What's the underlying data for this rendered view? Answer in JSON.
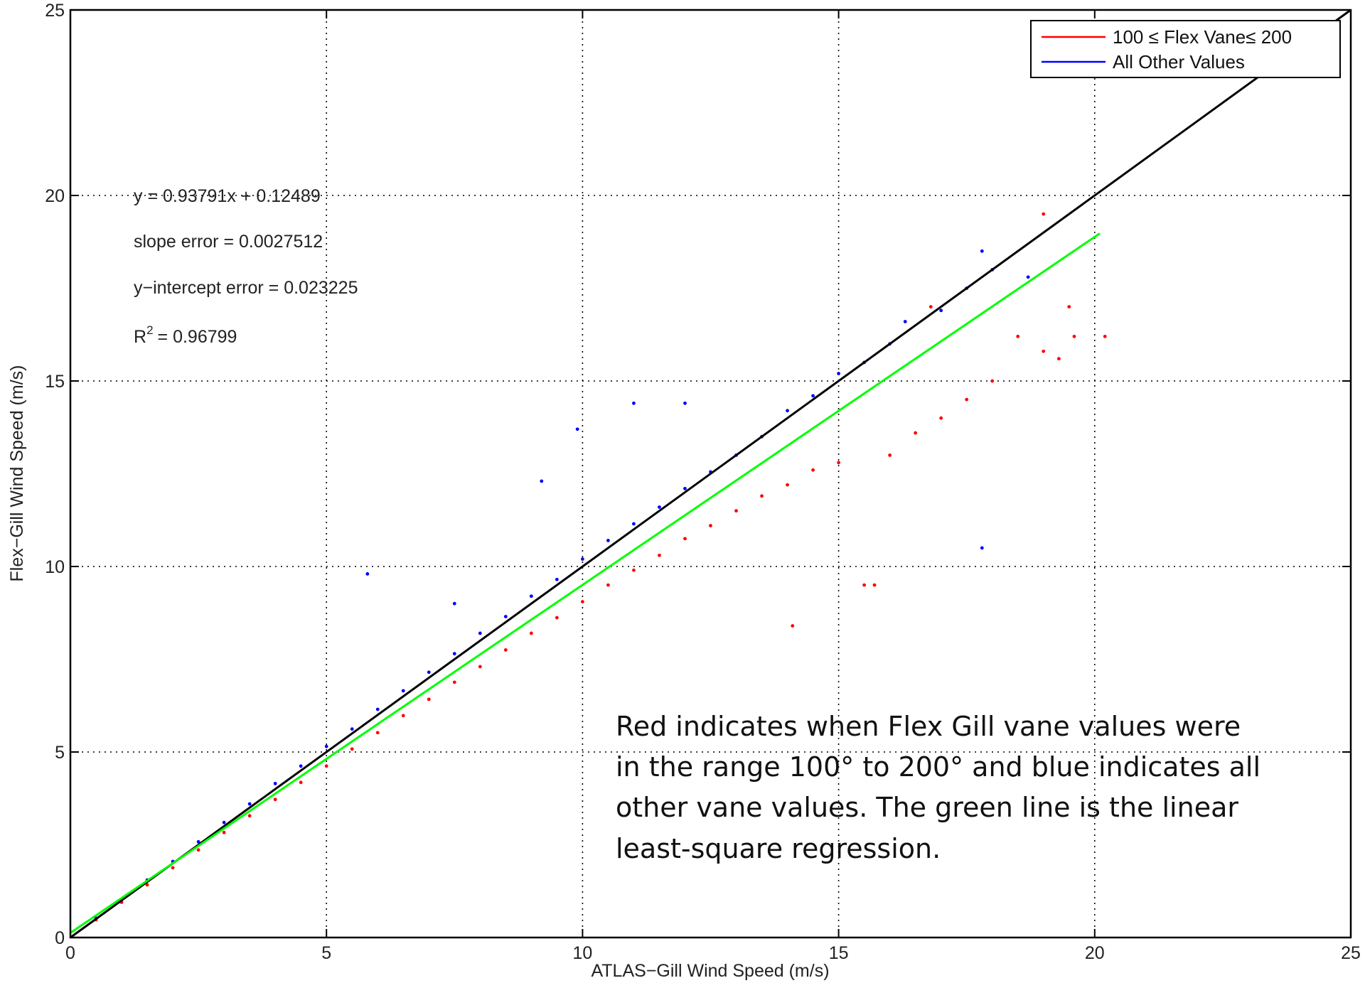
{
  "chart_data": {
    "type": "scatter",
    "xlabel": "ATLAS−Gill Wind Speed (m/s)",
    "ylabel": "Flex−Gill Wind Speed (m/s)",
    "xlim": [
      0,
      25
    ],
    "ylim": [
      0,
      25
    ],
    "xticks": [
      "0",
      "5",
      "10",
      "15",
      "20",
      "25"
    ],
    "yticks": [
      "0",
      "5",
      "10",
      "15",
      "20",
      "25"
    ],
    "grid": true,
    "legend_position": "top-right",
    "series": [
      {
        "name": "100 ≤ Flex Vane≤ 200",
        "color": "#ff0000",
        "points": [
          [
            0.5,
            0.48
          ],
          [
            1.0,
            0.95
          ],
          [
            1.5,
            1.42
          ],
          [
            2.0,
            1.88
          ],
          [
            2.5,
            2.36
          ],
          [
            3.0,
            2.83
          ],
          [
            3.5,
            3.28
          ],
          [
            4.0,
            3.72
          ],
          [
            4.5,
            4.18
          ],
          [
            5.0,
            4.62
          ],
          [
            5.5,
            5.08
          ],
          [
            6.0,
            5.52
          ],
          [
            6.5,
            5.98
          ],
          [
            7.0,
            6.42
          ],
          [
            7.5,
            6.88
          ],
          [
            8.0,
            7.3
          ],
          [
            8.5,
            7.75
          ],
          [
            9.0,
            8.2
          ],
          [
            9.5,
            8.62
          ],
          [
            10.0,
            9.05
          ],
          [
            10.5,
            9.5
          ],
          [
            11.0,
            9.9
          ],
          [
            11.5,
            10.3
          ],
          [
            12.0,
            10.75
          ],
          [
            12.5,
            11.1
          ],
          [
            13.0,
            11.5
          ],
          [
            13.5,
            11.9
          ],
          [
            14.0,
            12.2
          ],
          [
            14.5,
            12.6
          ],
          [
            15.0,
            12.8
          ],
          [
            15.5,
            9.5
          ],
          [
            15.7,
            9.5
          ],
          [
            14.1,
            8.4
          ],
          [
            16.0,
            13.0
          ],
          [
            16.5,
            13.6
          ],
          [
            17.0,
            14.0
          ],
          [
            17.5,
            14.5
          ],
          [
            18.0,
            15.0
          ],
          [
            18.5,
            16.2
          ],
          [
            19.0,
            15.8
          ],
          [
            19.3,
            15.6
          ],
          [
            19.6,
            16.2
          ],
          [
            20.2,
            16.2
          ],
          [
            19.5,
            17.0
          ],
          [
            19.0,
            19.5
          ],
          [
            16.8,
            17.0
          ]
        ]
      },
      {
        "name": "All Other Values",
        "color": "#0000ff",
        "points": [
          [
            0.5,
            0.52
          ],
          [
            1.0,
            1.02
          ],
          [
            1.5,
            1.55
          ],
          [
            2.0,
            2.05
          ],
          [
            2.5,
            2.58
          ],
          [
            3.0,
            3.1
          ],
          [
            3.5,
            3.6
          ],
          [
            4.0,
            4.15
          ],
          [
            4.5,
            4.62
          ],
          [
            5.0,
            5.15
          ],
          [
            5.5,
            5.62
          ],
          [
            6.0,
            6.15
          ],
          [
            6.5,
            6.65
          ],
          [
            7.0,
            7.15
          ],
          [
            7.5,
            7.65
          ],
          [
            8.0,
            8.2
          ],
          [
            8.5,
            8.65
          ],
          [
            9.0,
            9.2
          ],
          [
            9.5,
            9.65
          ],
          [
            10.0,
            10.2
          ],
          [
            10.5,
            10.7
          ],
          [
            11.0,
            11.15
          ],
          [
            11.5,
            11.6
          ],
          [
            12.0,
            12.1
          ],
          [
            12.5,
            12.55
          ],
          [
            13.0,
            13.0
          ],
          [
            13.5,
            13.5
          ],
          [
            14.0,
            14.2
          ],
          [
            14.5,
            14.6
          ],
          [
            15.0,
            15.2
          ],
          [
            15.5,
            15.5
          ],
          [
            16.0,
            16.0
          ],
          [
            16.3,
            16.6
          ],
          [
            17.0,
            16.9
          ],
          [
            17.5,
            17.5
          ],
          [
            17.8,
            18.5
          ],
          [
            18.0,
            18.0
          ],
          [
            17.8,
            10.5
          ],
          [
            9.2,
            12.3
          ],
          [
            9.9,
            13.7
          ],
          [
            11.0,
            14.4
          ],
          [
            12.0,
            14.4
          ],
          [
            5.8,
            9.8
          ],
          [
            7.5,
            9.0
          ],
          [
            18.7,
            17.8
          ]
        ]
      }
    ],
    "fit_line": {
      "slope": 0.93791,
      "intercept": 0.12489,
      "x_range": [
        0,
        20.1
      ],
      "color": "#00ff00"
    },
    "identity_line": {
      "x_range": [
        0,
        25
      ],
      "color": "#000000"
    },
    "annotations": [
      "y = 0.93791x + 0.12489",
      "slope error = 0.0027512",
      "y−intercept error = 0.023225",
      "R",
      "2",
      "= 0.96799"
    ],
    "note": [
      "Red indicates when Flex Gill vane values were",
      "in the range 100° to 200° and blue indicates all",
      "other vane values.  The green line is the linear",
      "least-square regression."
    ]
  }
}
